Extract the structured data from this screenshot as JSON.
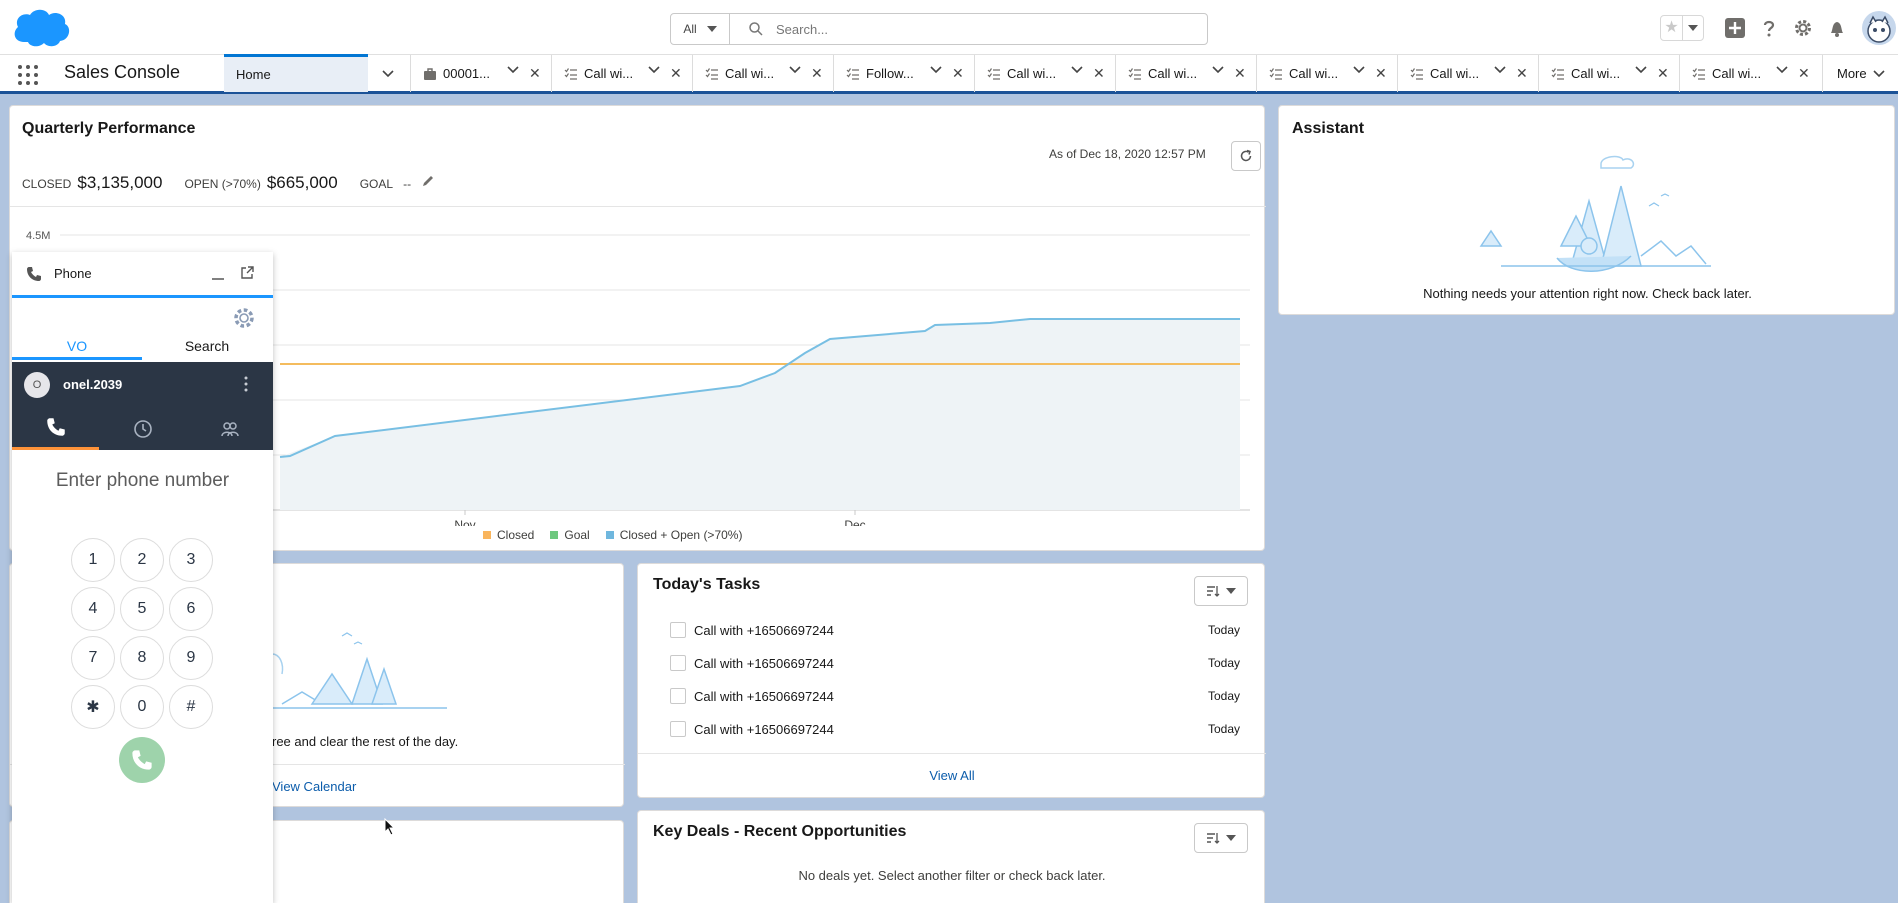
{
  "header": {
    "search_scope": "All",
    "search_placeholder": "Search..."
  },
  "nav": {
    "app_name": "Sales Console",
    "home_tab": "Home",
    "tabs": [
      {
        "label": "00001...",
        "icon": "briefcase-icon"
      },
      {
        "label": "Call wi...",
        "icon": "task-icon"
      },
      {
        "label": "Call wi...",
        "icon": "task-icon"
      },
      {
        "label": "Follow...",
        "icon": "task-icon"
      },
      {
        "label": "Call wi...",
        "icon": "task-icon"
      },
      {
        "label": "Call wi...",
        "icon": "task-icon"
      },
      {
        "label": "Call wi...",
        "icon": "task-icon"
      },
      {
        "label": "Call wi...",
        "icon": "task-icon"
      },
      {
        "label": "Call wi...",
        "icon": "task-icon"
      },
      {
        "label": "Call wi...",
        "icon": "task-icon"
      }
    ],
    "more": "More"
  },
  "quarterly": {
    "title": "Quarterly Performance",
    "as_of": "As of Dec 18, 2020 12:57 PM",
    "closed_label": "CLOSED",
    "closed_value": "$3,135,000",
    "open_label": "OPEN (>70%)",
    "open_value": "$665,000",
    "goal_label": "GOAL",
    "goal_value": "--"
  },
  "chart_data": {
    "type": "line",
    "y_tick_top": "4.5M",
    "x_ticks": [
      "Nov",
      "Dec"
    ],
    "legend": [
      {
        "name": "Closed",
        "color": "#f9b55d"
      },
      {
        "name": "Goal",
        "color": "#6ec87f"
      },
      {
        "name": "Closed + Open (>70%)",
        "color": "#6fb7de"
      }
    ],
    "goal_line_color": "#f4bc5e",
    "series_color": "#78bfe3"
  },
  "assistant": {
    "title": "Assistant",
    "message": "Nothing needs your attention right now. Check back later."
  },
  "events": {
    "message": "ree and clear the rest of the day.",
    "link": "View Calendar"
  },
  "tasks": {
    "title": "Today's Tasks",
    "items": [
      {
        "name": "Call with +16506697244",
        "due": "Today"
      },
      {
        "name": "Call with +16506697244",
        "due": "Today"
      },
      {
        "name": "Call with +16506697244",
        "due": "Today"
      },
      {
        "name": "Call with +16506697244",
        "due": "Today"
      }
    ],
    "link": "View All"
  },
  "deals": {
    "title": "Key Deals - Recent Opportunities",
    "message": "No deals yet. Select another filter or check back later."
  },
  "phone": {
    "title": "Phone",
    "tab_vo": "VO",
    "tab_search": "Search",
    "user_initial": "O",
    "user_name": "onel.2039",
    "input_placeholder": "Enter phone number",
    "keys": [
      "1",
      "2",
      "3",
      "4",
      "5",
      "6",
      "7",
      "8",
      "9",
      "✱",
      "0",
      "#"
    ]
  },
  "colors": {
    "brand_blue": "#0176d3",
    "nav_bar_underline": "#1b5297",
    "phone_dark": "#2b3645",
    "call_green": "#9ed3ab",
    "link_blue": "#0b5cab"
  }
}
